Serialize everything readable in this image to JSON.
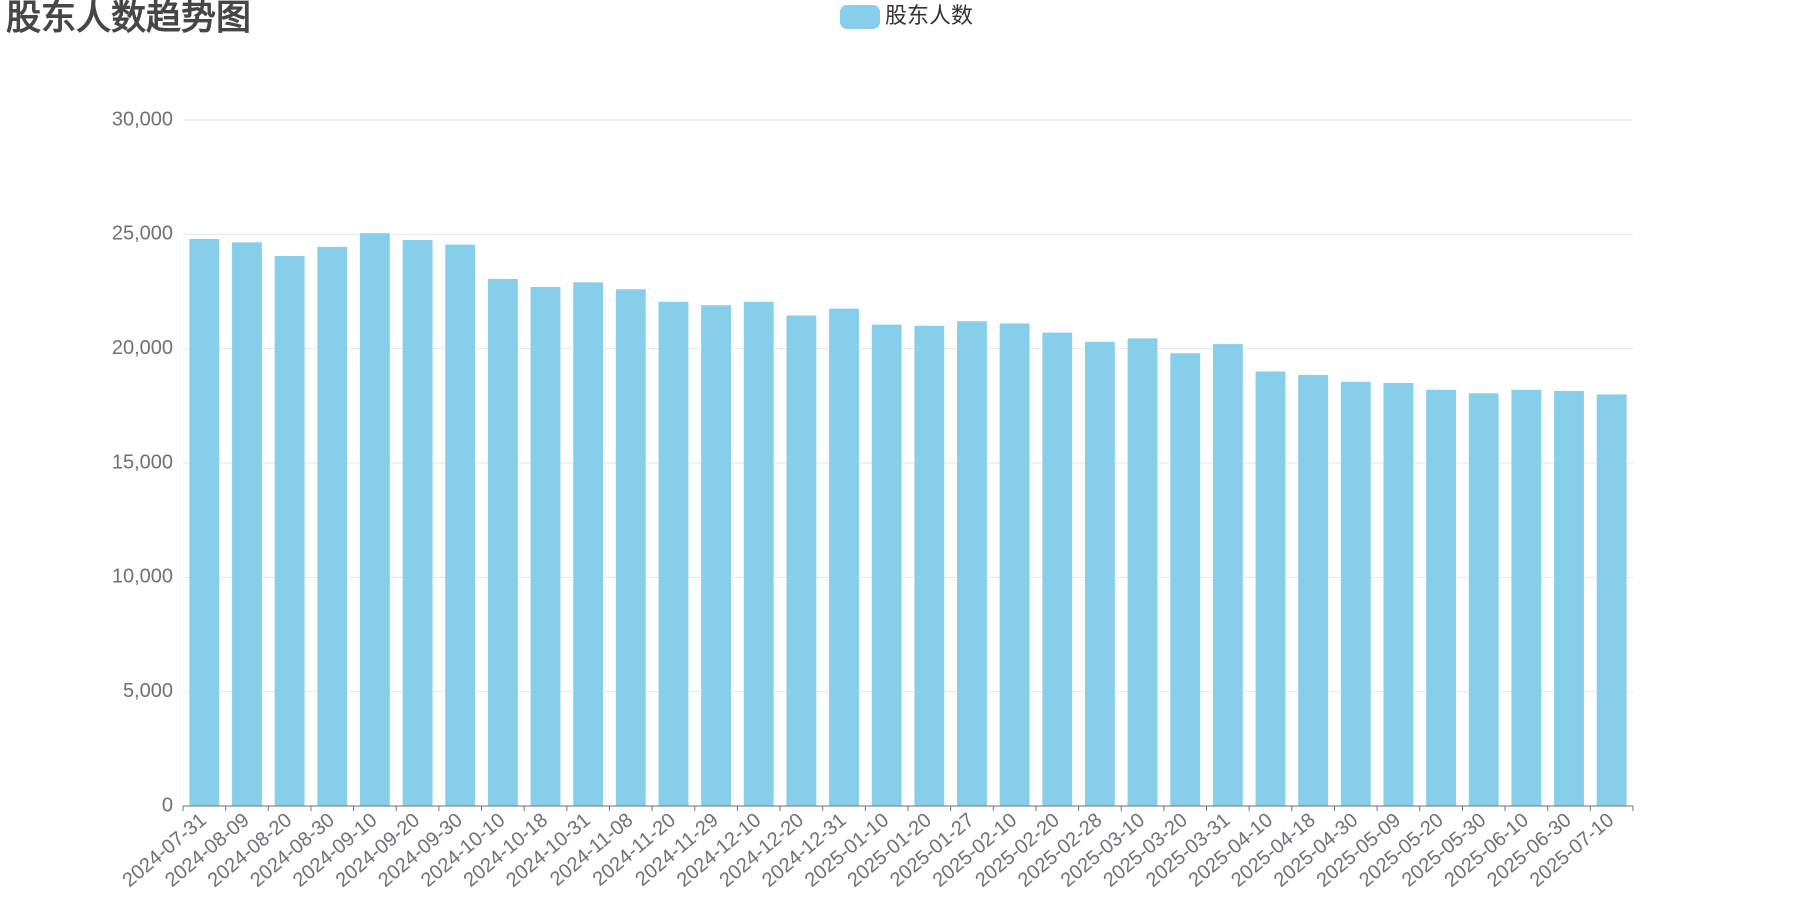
{
  "chart_data": {
    "type": "bar",
    "title": "股东人数趋势图",
    "categories": [
      "2024-07-31",
      "2024-08-09",
      "2024-08-20",
      "2024-08-30",
      "2024-09-10",
      "2024-09-20",
      "2024-09-30",
      "2024-10-10",
      "2024-10-18",
      "2024-10-31",
      "2024-11-08",
      "2024-11-20",
      "2024-11-29",
      "2024-12-10",
      "2024-12-20",
      "2024-12-31",
      "2025-01-10",
      "2025-01-20",
      "2025-01-27",
      "2025-02-10",
      "2025-02-20",
      "2025-02-28",
      "2025-03-10",
      "2025-03-20",
      "2025-03-31",
      "2025-04-10",
      "2025-04-18",
      "2025-04-30",
      "2025-05-09",
      "2025-05-20",
      "2025-05-30",
      "2025-06-10",
      "2025-06-30",
      "2025-07-10"
    ],
    "series": [
      {
        "name": "股东人数",
        "color": "#87ceeb",
        "values": [
          24800,
          24650,
          24050,
          24450,
          25050,
          24750,
          24550,
          23050,
          22700,
          22900,
          22600,
          22050,
          21900,
          22050,
          21450,
          21750,
          21050,
          21000,
          21200,
          21100,
          20700,
          20300,
          20450,
          19800,
          20200,
          19000,
          18850,
          18550,
          18500,
          18200,
          18050,
          18200,
          18150,
          18000
        ]
      }
    ],
    "ylim": [
      0,
      30000
    ],
    "yticks": [
      0,
      {
        "value": 5000,
        "label": "5,000"
      },
      {
        "value": 10000,
        "label": "10,000"
      },
      {
        "value": 15000,
        "label": "15,000"
      },
      {
        "value": 20000,
        "label": "20,000"
      },
      {
        "value": 25000,
        "label": "25,000"
      },
      {
        "value": 30000,
        "label": "30,000"
      }
    ],
    "grid": true
  }
}
